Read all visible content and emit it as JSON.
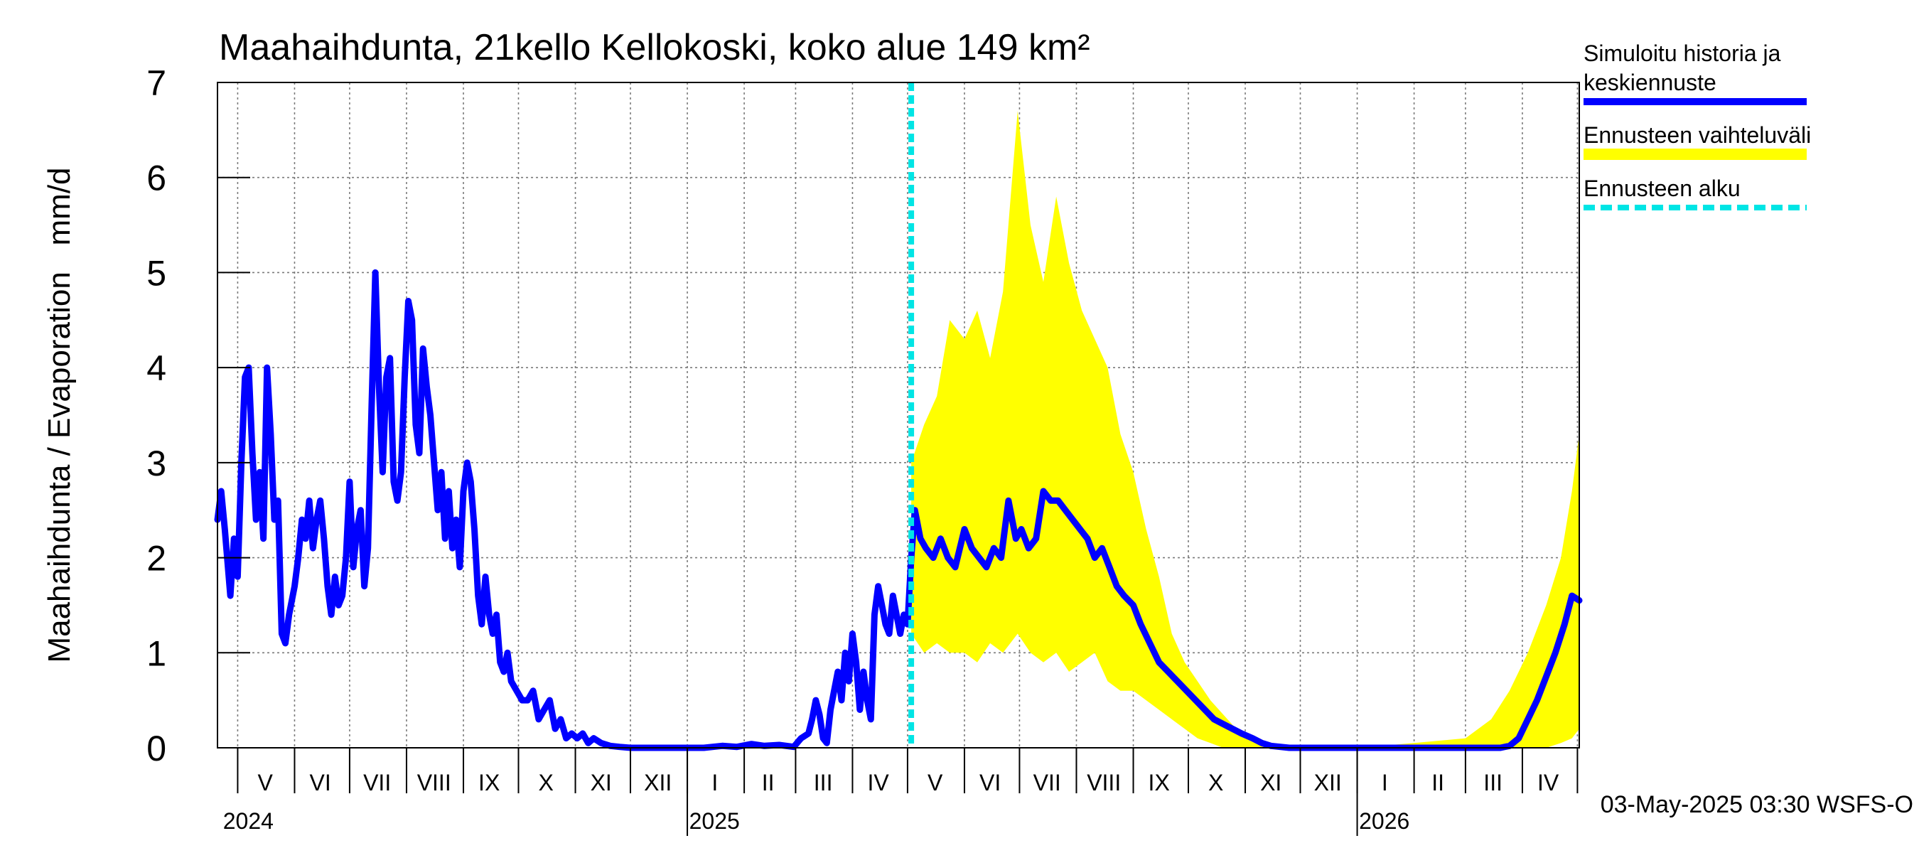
{
  "chart_data": {
    "type": "line",
    "title": "Maahaihdunta, 21kello Kellokoski, koko alue 149 km²",
    "ylabel": "Maahaihdunta / Evaporation   mm/d",
    "ylim": [
      0,
      7
    ],
    "yticks": [
      0,
      1,
      2,
      3,
      4,
      5,
      6,
      7
    ],
    "xlim": [
      "2024-04-20",
      "2026-05-02"
    ],
    "grid": true,
    "legend_position": "top-right",
    "forecast_start": "2025-05-03",
    "footer": "03-May-2025 03:30 WSFS-O",
    "month_labels": [
      {
        "label": "V",
        "date": "2024-05-16"
      },
      {
        "label": "VI",
        "date": "2024-06-15"
      },
      {
        "label": "VII",
        "date": "2024-07-16"
      },
      {
        "label": "VIII",
        "date": "2024-08-16"
      },
      {
        "label": "IX",
        "date": "2024-09-15"
      },
      {
        "label": "X",
        "date": "2024-10-16"
      },
      {
        "label": "XI",
        "date": "2024-11-15"
      },
      {
        "label": "XII",
        "date": "2024-12-16"
      },
      {
        "label": "I",
        "date": "2025-01-16"
      },
      {
        "label": "II",
        "date": "2025-02-14"
      },
      {
        "label": "III",
        "date": "2025-03-16"
      },
      {
        "label": "IV",
        "date": "2025-04-15"
      },
      {
        "label": "V",
        "date": "2025-05-16"
      },
      {
        "label": "VI",
        "date": "2025-06-15"
      },
      {
        "label": "VII",
        "date": "2025-07-16"
      },
      {
        "label": "VIII",
        "date": "2025-08-16"
      },
      {
        "label": "IX",
        "date": "2025-09-15"
      },
      {
        "label": "X",
        "date": "2025-10-16"
      },
      {
        "label": "XI",
        "date": "2025-11-15"
      },
      {
        "label": "XII",
        "date": "2025-12-16"
      },
      {
        "label": "I",
        "date": "2026-01-16"
      },
      {
        "label": "II",
        "date": "2026-02-14"
      },
      {
        "label": "III",
        "date": "2026-03-16"
      },
      {
        "label": "IV",
        "date": "2026-04-15"
      }
    ],
    "month_boundaries": [
      "2024-05-01",
      "2024-06-01",
      "2024-07-01",
      "2024-08-01",
      "2024-09-01",
      "2024-10-01",
      "2024-11-01",
      "2024-12-01",
      "2025-01-01",
      "2025-02-01",
      "2025-03-01",
      "2025-04-01",
      "2025-05-01",
      "2025-06-01",
      "2025-07-01",
      "2025-08-01",
      "2025-09-01",
      "2025-10-01",
      "2025-11-01",
      "2025-12-01",
      "2026-01-01",
      "2026-02-01",
      "2026-03-01",
      "2026-04-01",
      "2026-05-01"
    ],
    "year_labels": [
      {
        "label": "2024",
        "date": "2024-04-23"
      },
      {
        "label": "2025",
        "date": "2025-01-02"
      },
      {
        "label": "2026",
        "date": "2026-01-02"
      }
    ],
    "year_boundaries": [
      "2025-01-01",
      "2026-01-01"
    ],
    "legend": [
      {
        "label": "Simuloitu historia ja keskiennuste",
        "color": "#0000ff",
        "style": "solid"
      },
      {
        "label": "Ennusteen vaihteluväli",
        "color": "#ffff00",
        "style": "band"
      },
      {
        "label": "Ennusteen alku",
        "color": "#00e5e5",
        "style": "dashed"
      }
    ],
    "series": [
      {
        "name": "Simuloitu historia ja keskiennuste",
        "color": "#0000ff",
        "x": [
          "2024-04-20",
          "2024-04-22",
          "2024-04-24",
          "2024-04-27",
          "2024-04-29",
          "2024-05-01",
          "2024-05-03",
          "2024-05-05",
          "2024-05-07",
          "2024-05-09",
          "2024-05-11",
          "2024-05-13",
          "2024-05-15",
          "2024-05-17",
          "2024-05-19",
          "2024-05-21",
          "2024-05-23",
          "2024-05-25",
          "2024-05-27",
          "2024-05-29",
          "2024-06-01",
          "2024-06-03",
          "2024-06-05",
          "2024-06-07",
          "2024-06-09",
          "2024-06-11",
          "2024-06-13",
          "2024-06-15",
          "2024-06-17",
          "2024-06-19",
          "2024-06-21",
          "2024-06-23",
          "2024-06-25",
          "2024-06-27",
          "2024-06-29",
          "2024-07-01",
          "2024-07-03",
          "2024-07-05",
          "2024-07-07",
          "2024-07-09",
          "2024-07-11",
          "2024-07-13",
          "2024-07-15",
          "2024-07-17",
          "2024-07-19",
          "2024-07-21",
          "2024-07-23",
          "2024-07-25",
          "2024-07-27",
          "2024-07-29",
          "2024-07-31",
          "2024-08-02",
          "2024-08-04",
          "2024-08-06",
          "2024-08-08",
          "2024-08-10",
          "2024-08-12",
          "2024-08-14",
          "2024-08-16",
          "2024-08-18",
          "2024-08-20",
          "2024-08-22",
          "2024-08-24",
          "2024-08-26",
          "2024-08-28",
          "2024-08-30",
          "2024-09-01",
          "2024-09-03",
          "2024-09-05",
          "2024-09-07",
          "2024-09-09",
          "2024-09-11",
          "2024-09-13",
          "2024-09-15",
          "2024-09-17",
          "2024-09-19",
          "2024-09-21",
          "2024-09-23",
          "2024-09-25",
          "2024-09-27",
          "2024-09-30",
          "2024-10-03",
          "2024-10-06",
          "2024-10-09",
          "2024-10-12",
          "2024-10-15",
          "2024-10-18",
          "2024-10-21",
          "2024-10-24",
          "2024-10-27",
          "2024-10-30",
          "2024-11-02",
          "2024-11-05",
          "2024-11-08",
          "2024-11-11",
          "2024-11-15",
          "2024-11-20",
          "2024-11-25",
          "2024-12-01",
          "2024-12-10",
          "2024-12-20",
          "2025-01-01",
          "2025-01-10",
          "2025-01-20",
          "2025-01-28",
          "2025-02-05",
          "2025-02-12",
          "2025-02-20",
          "2025-02-28",
          "2025-03-04",
          "2025-03-08",
          "2025-03-10",
          "2025-03-12",
          "2025-03-14",
          "2025-03-16",
          "2025-03-18",
          "2025-03-20",
          "2025-03-22",
          "2025-03-24",
          "2025-03-26",
          "2025-03-28",
          "2025-03-30",
          "2025-04-01",
          "2025-04-03",
          "2025-04-05",
          "2025-04-07",
          "2025-04-09",
          "2025-04-11",
          "2025-04-13",
          "2025-04-15",
          "2025-04-17",
          "2025-04-19",
          "2025-04-21",
          "2025-04-23",
          "2025-04-25",
          "2025-04-27",
          "2025-04-29",
          "2025-05-01",
          "2025-05-03",
          "2025-05-05",
          "2025-05-08",
          "2025-05-11",
          "2025-05-15",
          "2025-05-19",
          "2025-05-23",
          "2025-05-27",
          "2025-06-01",
          "2025-06-05",
          "2025-06-09",
          "2025-06-13",
          "2025-06-17",
          "2025-06-21",
          "2025-06-25",
          "2025-06-29",
          "2025-07-02",
          "2025-07-06",
          "2025-07-10",
          "2025-07-14",
          "2025-07-18",
          "2025-07-22",
          "2025-07-26",
          "2025-07-30",
          "2025-08-03",
          "2025-08-07",
          "2025-08-11",
          "2025-08-15",
          "2025-08-19",
          "2025-08-23",
          "2025-08-27",
          "2025-09-01",
          "2025-09-05",
          "2025-09-10",
          "2025-09-15",
          "2025-09-20",
          "2025-09-25",
          "2025-09-30",
          "2025-10-05",
          "2025-10-10",
          "2025-10-15",
          "2025-10-20",
          "2025-10-25",
          "2025-10-30",
          "2025-11-05",
          "2025-11-10",
          "2025-11-15",
          "2025-11-25",
          "2025-12-10",
          "2026-01-01",
          "2026-02-01",
          "2026-03-01",
          "2026-03-20",
          "2026-03-25",
          "2026-03-30",
          "2026-04-04",
          "2026-04-09",
          "2026-04-14",
          "2026-04-19",
          "2026-04-24",
          "2026-04-28",
          "2026-05-02"
        ],
        "y": [
          2.4,
          2.7,
          2.3,
          1.6,
          2.2,
          1.8,
          3.0,
          3.9,
          4.0,
          3.1,
          2.4,
          2.9,
          2.2,
          4.0,
          3.3,
          2.4,
          2.6,
          1.2,
          1.1,
          1.4,
          1.7,
          2.0,
          2.4,
          2.2,
          2.6,
          2.1,
          2.4,
          2.6,
          2.2,
          1.7,
          1.4,
          1.8,
          1.5,
          1.6,
          2.0,
          2.8,
          1.9,
          2.3,
          2.5,
          1.7,
          2.1,
          3.6,
          5.0,
          3.8,
          2.9,
          3.9,
          4.1,
          2.8,
          2.6,
          2.9,
          3.9,
          4.7,
          4.5,
          3.4,
          3.1,
          4.2,
          3.8,
          3.5,
          3.0,
          2.5,
          2.9,
          2.2,
          2.7,
          2.1,
          2.4,
          1.9,
          2.7,
          3.0,
          2.8,
          2.3,
          1.6,
          1.3,
          1.8,
          1.4,
          1.2,
          1.4,
          0.9,
          0.8,
          1.0,
          0.7,
          0.6,
          0.5,
          0.5,
          0.6,
          0.3,
          0.4,
          0.5,
          0.2,
          0.3,
          0.1,
          0.15,
          0.1,
          0.15,
          0.05,
          0.1,
          0.05,
          0.02,
          0.01,
          0.0,
          0.0,
          0.0,
          0.0,
          0.0,
          0.02,
          0.01,
          0.04,
          0.02,
          0.03,
          0.01,
          0.1,
          0.15,
          0.3,
          0.5,
          0.35,
          0.1,
          0.05,
          0.4,
          0.6,
          0.8,
          0.5,
          1.0,
          0.7,
          1.2,
          0.9,
          0.4,
          0.8,
          0.5,
          0.3,
          1.4,
          1.7,
          1.5,
          1.3,
          1.2,
          1.6,
          1.4,
          1.2,
          1.4,
          1.3,
          2.0,
          2.5,
          2.2,
          2.1,
          2.0,
          2.2,
          2.0,
          1.9,
          2.3,
          2.1,
          2.0,
          1.9,
          2.1,
          2.0,
          2.6,
          2.2,
          2.3,
          2.1,
          2.2,
          2.7,
          2.6,
          2.6,
          2.5,
          2.4,
          2.3,
          2.2,
          2.0,
          2.1,
          1.9,
          1.7,
          1.6,
          1.5,
          1.3,
          1.1,
          0.9,
          0.8,
          0.7,
          0.6,
          0.5,
          0.4,
          0.3,
          0.25,
          0.2,
          0.15,
          0.1,
          0.05,
          0.02,
          0.0,
          0.0,
          0.0,
          0.0,
          0.0,
          0.0,
          0.02,
          0.1,
          0.3,
          0.5,
          0.75,
          1.0,
          1.3,
          1.6,
          1.55
        ]
      },
      {
        "name": "Ennusteen vaihteluväli",
        "color": "#ffff00",
        "x": [
          "2025-05-03",
          "2025-05-10",
          "2025-05-17",
          "2025-05-24",
          "2025-06-01",
          "2025-06-08",
          "2025-06-15",
          "2025-06-22",
          "2025-06-30",
          "2025-07-07",
          "2025-07-14",
          "2025-07-21",
          "2025-07-28",
          "2025-08-04",
          "2025-08-11",
          "2025-08-18",
          "2025-08-25",
          "2025-09-01",
          "2025-09-08",
          "2025-09-15",
          "2025-09-22",
          "2025-09-29",
          "2025-10-06",
          "2025-10-13",
          "2025-10-20",
          "2025-10-27",
          "2025-11-03",
          "2025-11-10",
          "2025-11-20",
          "2025-12-01",
          "2026-01-01",
          "2026-02-01",
          "2026-03-01",
          "2026-03-15",
          "2026-03-25",
          "2026-04-04",
          "2026-04-14",
          "2026-04-22",
          "2026-04-28",
          "2026-05-02"
        ],
        "low": [
          1.2,
          1.0,
          1.1,
          1.0,
          1.0,
          0.9,
          1.1,
          1.0,
          1.2,
          1.0,
          0.9,
          1.0,
          0.8,
          0.9,
          1.0,
          0.7,
          0.6,
          0.6,
          0.5,
          0.4,
          0.3,
          0.2,
          0.1,
          0.05,
          0.0,
          0.0,
          0.0,
          0.0,
          0.0,
          0.0,
          0.0,
          0.0,
          0.0,
          0.0,
          0.0,
          0.0,
          0.0,
          0.05,
          0.1,
          0.2
        ],
        "high": [
          3.0,
          3.4,
          3.7,
          4.5,
          4.3,
          4.6,
          4.1,
          4.8,
          6.7,
          5.5,
          4.9,
          5.8,
          5.1,
          4.6,
          4.3,
          4.0,
          3.3,
          2.9,
          2.3,
          1.8,
          1.2,
          0.9,
          0.7,
          0.5,
          0.35,
          0.2,
          0.1,
          0.05,
          0.02,
          0.0,
          0.0,
          0.05,
          0.1,
          0.3,
          0.6,
          1.0,
          1.5,
          2.0,
          2.7,
          3.3
        ]
      }
    ]
  }
}
